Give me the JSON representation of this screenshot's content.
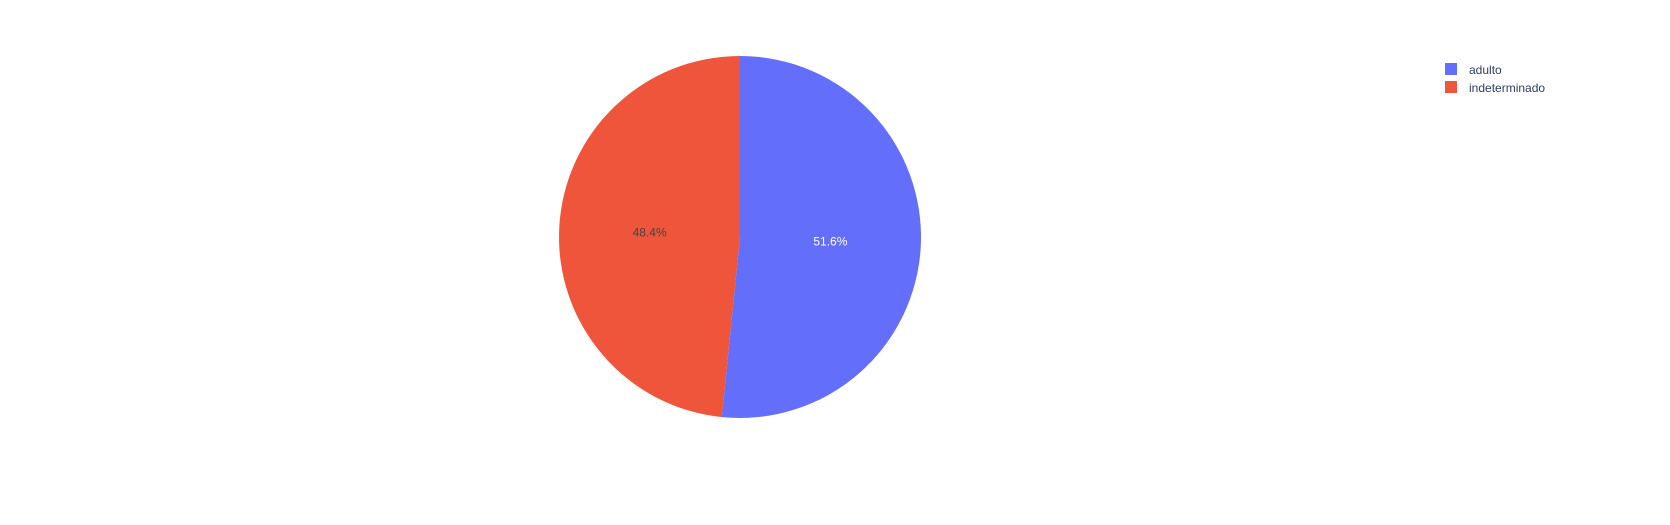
{
  "chart_data": {
    "type": "pie",
    "title": "",
    "labels": [
      "adulto",
      "indeterminado"
    ],
    "values": [
      51.6,
      48.4
    ],
    "text_labels": [
      "51.6%",
      "48.4%"
    ],
    "colors": [
      "#636efa",
      "#ef553b"
    ],
    "label_colors": [
      "#ffffff",
      "#444444"
    ],
    "direction": "clockwise",
    "start_angle_deg": 90,
    "legend": {
      "placement": "top-right",
      "entries": [
        "adulto",
        "indeterminado"
      ]
    }
  }
}
